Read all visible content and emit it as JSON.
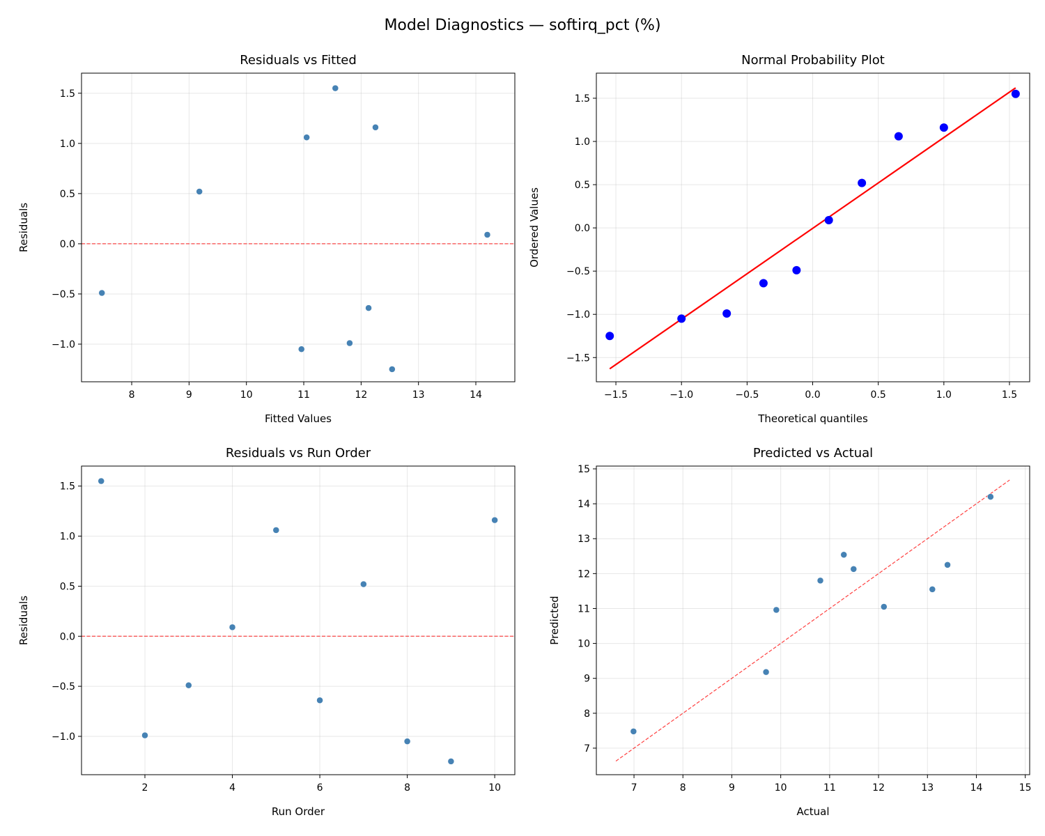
{
  "suptitle": "Model Diagnostics — softirq_pct (%)",
  "chart_data": [
    {
      "type": "scatter",
      "title": "Residuals vs Fitted",
      "xlabel": "Fitted Values",
      "ylabel": "Residuals",
      "xlim": [
        7.125,
        14.68
      ],
      "ylim": [
        -1.375,
        1.7
      ],
      "xticks": [
        8,
        9,
        10,
        11,
        12,
        13,
        14
      ],
      "yticks": [
        -1.0,
        -0.5,
        0.0,
        0.5,
        1.0,
        1.5
      ],
      "grid": true,
      "point_color": "#4682b4",
      "x": [
        11.55,
        11.8,
        7.48,
        14.2,
        11.05,
        12.13,
        9.18,
        10.96,
        12.54,
        12.25
      ],
      "y": [
        1.55,
        -0.99,
        -0.49,
        0.09,
        1.06,
        -0.64,
        0.52,
        -1.05,
        -1.25,
        1.16
      ],
      "reference_line": {
        "type": "hline",
        "y": 0,
        "color": "#ff0000",
        "style": "dashed"
      }
    },
    {
      "type": "scatter",
      "title": "Normal Probability Plot",
      "xlabel": "Theoretical quantiles",
      "ylabel": "Ordered Values",
      "xlim": [
        -1.649,
        1.654
      ],
      "ylim": [
        -1.78,
        1.79
      ],
      "xticks": [
        -1.5,
        -1.0,
        -0.5,
        0.0,
        0.5,
        1.0,
        1.5
      ],
      "yticks": [
        -1.5,
        -1.0,
        -0.5,
        0.0,
        0.5,
        1.0,
        1.5
      ],
      "grid": true,
      "point_color": "#0000ff",
      "x": [
        -1.547,
        -1.0,
        -0.655,
        -0.375,
        -0.123,
        0.123,
        0.375,
        0.655,
        1.0,
        1.547
      ],
      "y": [
        -1.25,
        -1.05,
        -0.99,
        -0.64,
        -0.49,
        0.09,
        0.52,
        1.06,
        1.16,
        1.55
      ],
      "reference_line": {
        "type": "fit",
        "x": [
          -1.547,
          1.547
        ],
        "y": [
          -1.63,
          1.62
        ],
        "color": "#ff0000",
        "style": "solid"
      }
    },
    {
      "type": "scatter",
      "title": "Residuals vs Run Order",
      "xlabel": "Run Order",
      "ylabel": "Residuals",
      "xlim": [
        0.55,
        10.46
      ],
      "ylim": [
        -1.383,
        1.7
      ],
      "xticks": [
        2,
        4,
        6,
        8,
        10
      ],
      "yticks": [
        -1.0,
        -0.5,
        0.0,
        0.5,
        1.0,
        1.5
      ],
      "grid": true,
      "point_color": "#4682b4",
      "x": [
        1,
        2,
        3,
        4,
        5,
        6,
        7,
        8,
        9,
        10
      ],
      "y": [
        1.55,
        -0.99,
        -0.49,
        0.09,
        1.06,
        -0.64,
        0.52,
        -1.05,
        -1.25,
        1.16
      ],
      "reference_line": {
        "type": "hline",
        "y": 0,
        "color": "#ff0000",
        "style": "dashed"
      }
    },
    {
      "type": "scatter",
      "title": "Predicted vs Actual",
      "xlabel": "Actual",
      "ylabel": "Predicted",
      "xlim": [
        6.23,
        15.09
      ],
      "ylim": [
        6.24,
        15.08
      ],
      "xticks": [
        7,
        8,
        9,
        10,
        11,
        12,
        13,
        14,
        15
      ],
      "yticks": [
        7,
        8,
        9,
        10,
        11,
        12,
        13,
        14,
        15
      ],
      "grid": true,
      "point_color": "#4682b4",
      "x": [
        13.1,
        10.81,
        6.99,
        14.29,
        12.11,
        11.49,
        9.7,
        9.91,
        11.29,
        13.41
      ],
      "y": [
        11.55,
        11.8,
        7.48,
        14.2,
        11.05,
        12.13,
        9.18,
        10.96,
        12.54,
        12.25
      ],
      "reference_line": {
        "type": "fit",
        "x": [
          6.63,
          14.68
        ],
        "y": [
          6.63,
          14.68
        ],
        "color": "#ff0000",
        "style": "dashed"
      }
    }
  ]
}
